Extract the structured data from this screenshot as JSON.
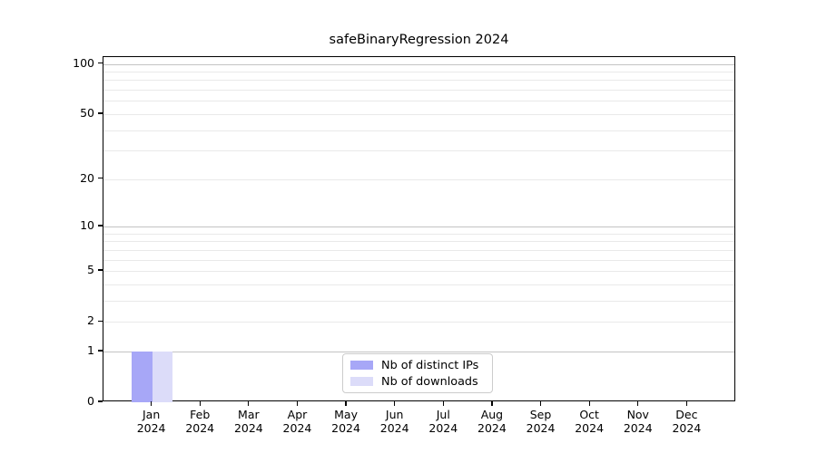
{
  "chart_data": {
    "type": "bar",
    "title": "safeBinaryRegression 2024",
    "x_categories": [
      "Jan",
      "Feb",
      "Mar",
      "Apr",
      "May",
      "Jun",
      "Jul",
      "Aug",
      "Sep",
      "Oct",
      "Nov",
      "Dec"
    ],
    "x_year_label": "2024",
    "series": [
      {
        "name": "Nb of distinct IPs",
        "color": "#a7a7f7",
        "values": [
          1,
          0,
          0,
          0,
          0,
          0,
          0,
          0,
          0,
          0,
          0,
          0
        ]
      },
      {
        "name": "Nb of downloads",
        "color": "#dcdcf9",
        "values": [
          1,
          0,
          0,
          0,
          0,
          0,
          0,
          0,
          0,
          0,
          0,
          0
        ]
      }
    ],
    "yscale": "log1p",
    "ylim": [
      0,
      110
    ],
    "xlim": [
      0,
      13
    ],
    "ytick_values": [
      0,
      1,
      2,
      5,
      10,
      20,
      50,
      100
    ],
    "ytick_labels": [
      "0",
      "1",
      "2",
      "5",
      "10",
      "20",
      "50",
      "100"
    ],
    "grid_major_values": [
      1,
      10,
      100
    ],
    "grid_minor_values": [
      2,
      3,
      4,
      5,
      6,
      7,
      8,
      9,
      20,
      30,
      40,
      50,
      60,
      70,
      80,
      90
    ],
    "grid": true,
    "legend_position": "lower center",
    "colors": {
      "grid_major": "#c3c3c3",
      "grid_minor": "#e9e9e9",
      "axis": "#000000",
      "text": "#000000",
      "legend_border": "#cccccc",
      "background": "#ffffff"
    }
  }
}
